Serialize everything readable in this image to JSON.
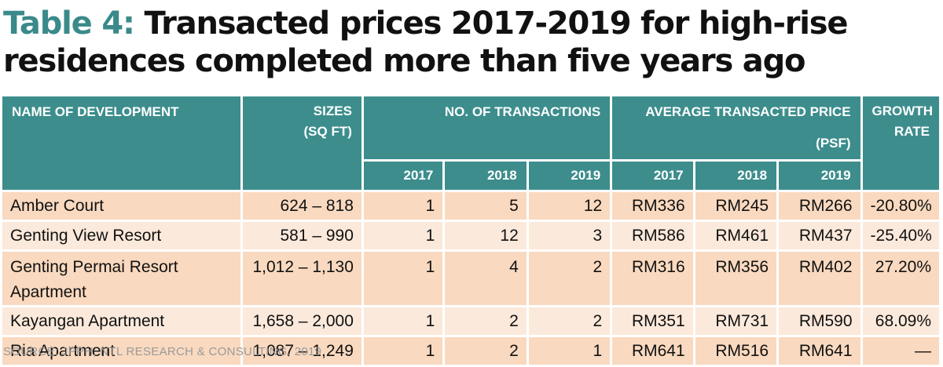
{
  "title": {
    "label": "Table 4:",
    "line1": "Transacted prices 2017-2019 for high-rise",
    "line2": "residences completed more than five years ago"
  },
  "headers": {
    "name": "NAME OF DEVELOPMENT",
    "sizes_line1": "SIZES",
    "sizes_line2": "(SQ FT)",
    "transactions": "NO. OF TRANSACTIONS",
    "avg_price": "AVERAGE TRANSACTED PRICE (PSF)",
    "growth_line1": "GROWTH",
    "growth_line2": "RATE",
    "years": [
      "2017",
      "2018",
      "2019"
    ]
  },
  "rows": [
    {
      "name": "Amber Court",
      "sizes": "624 – 818",
      "t2017": "1",
      "t2018": "5",
      "t2019": "12",
      "p2017": "RM336",
      "p2018": "RM245",
      "p2019": "RM266",
      "growth": "-20.80%"
    },
    {
      "name": "Genting View Resort",
      "sizes": "581 – 990",
      "t2017": "1",
      "t2018": "12",
      "t2019": "3",
      "p2017": "RM586",
      "p2018": "RM461",
      "p2019": "RM437",
      "growth": "-25.40%"
    },
    {
      "name": "Genting Permai Resort Apartment",
      "sizes": "1,012 – 1,130",
      "t2017": "1",
      "t2018": "4",
      "t2019": "2",
      "p2017": "RM316",
      "p2018": "RM356",
      "p2019": "RM402",
      "growth": "27.20%"
    },
    {
      "name": "Kayangan Apartment",
      "sizes": "1,658 – 2,000",
      "t2017": "1",
      "t2018": "2",
      "t2019": "2",
      "p2017": "RM351",
      "p2018": "RM731",
      "p2019": "RM590",
      "growth": "68.09%"
    },
    {
      "name": "Ria Apartment",
      "sizes": "1,087 – 1,249",
      "t2017": "1",
      "t2018": "2",
      "t2019": "1",
      "p2017": "RM641",
      "p2018": "RM516",
      "p2019": "RM641",
      "growth": "—"
    }
  ],
  "source": "SOURCE: JPPH; NTL RESEARCH & CONSULTING, 2019",
  "colors": {
    "header_bg": "#3d8d8d",
    "title_label": "#3a8a8a",
    "row_odd": "#f9d9bf",
    "row_even": "#fbe9db"
  }
}
